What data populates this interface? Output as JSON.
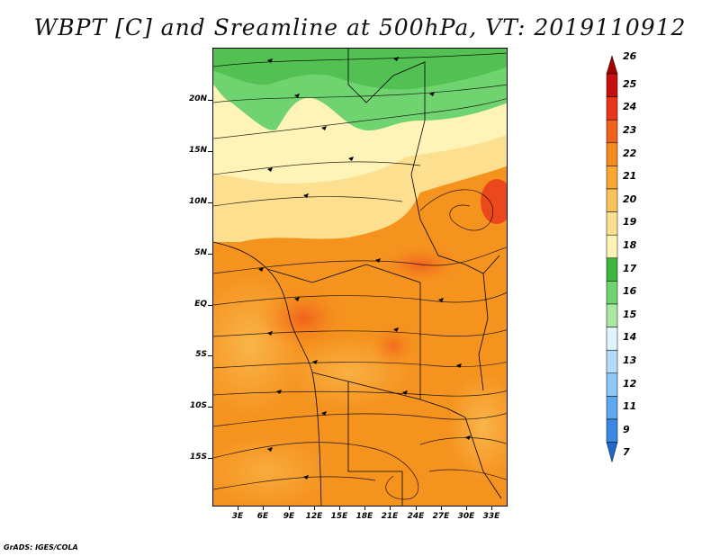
{
  "title": "WBPT [C] and Sreamline at 500hPa, VT: 2019110912",
  "footer": "GrADS: IGES/COLA",
  "lat_labels": [
    "20N",
    "15N",
    "10N",
    "5N",
    "EQ",
    "5S",
    "10S",
    "15S"
  ],
  "lon_labels": [
    "3E",
    "6E",
    "9E",
    "12E",
    "15E",
    "18E",
    "21E",
    "24E",
    "27E",
    "30E",
    "33E"
  ],
  "colorbar": {
    "levels": [
      "26",
      "25",
      "24",
      "23",
      "22",
      "21",
      "20",
      "19",
      "18",
      "17",
      "16",
      "15",
      "14",
      "13",
      "12",
      "11",
      "9",
      "7"
    ],
    "colors": [
      "#a50000",
      "#c80f0f",
      "#e8361a",
      "#f0611c",
      "#f58a1e",
      "#f9a632",
      "#fbc35c",
      "#fde08f",
      "#fef4b8",
      "#3fb43f",
      "#6fd36f",
      "#a9e8a0",
      "#e1f5fe",
      "#b3dcfb",
      "#8cc6f7",
      "#5ea9ef",
      "#3a88e3",
      "#1f66d1"
    ]
  },
  "map": {
    "field": "WBPT",
    "units": "C",
    "level": "500hPa",
    "valid_time": "2019110912"
  }
}
